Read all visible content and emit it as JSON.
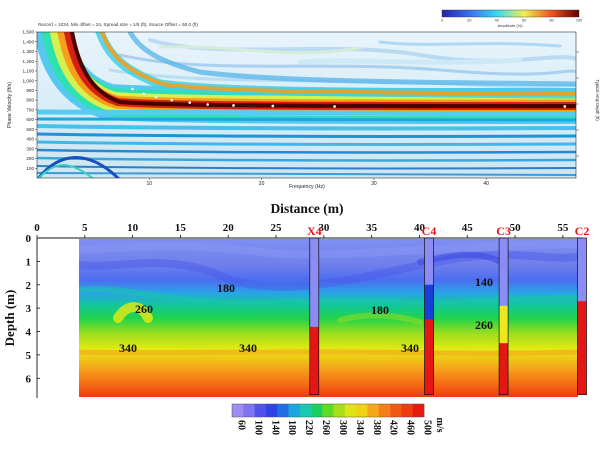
{
  "chart_data": [
    {
      "type": "heatmap",
      "header_text": "Record = 1034, Min offset = 24, Spread size = 1/5 (ft), Source Offset = 50.0 (ft)",
      "colorbar_title": "Amplitude (%)",
      "colorbar_ticks": [
        "0",
        "20",
        "40",
        "60",
        "80",
        "100"
      ],
      "xlabel": "Frequency (Hz)",
      "ylabel": "Phase Velocity (ft/s)",
      "right_label": "Typical Amp Depth (ft)",
      "xlim": [
        0,
        48
      ],
      "ylim": [
        0,
        1500
      ],
      "x_ticks": [
        "10",
        "20",
        "30",
        "40"
      ],
      "y_ticks": [
        "1,500",
        "1,400",
        "1,300",
        "1,200",
        "1,100",
        "1,000",
        "900",
        "800",
        "700",
        "600",
        "500",
        "400",
        "300",
        "200",
        "100"
      ],
      "dispersion_curve": {
        "x": [
          5.5,
          6.2,
          6.9,
          7.7,
          8.5,
          9.5,
          10.6,
          12.0,
          13.6,
          15.2,
          17.5,
          21.0,
          26.5,
          47.0
        ],
        "y": [
          1180,
          1110,
          1040,
          975,
          915,
          865,
          830,
          800,
          775,
          755,
          745,
          740,
          735,
          735
        ]
      }
    },
    {
      "type": "heatmap",
      "title": "Distance (m)",
      "ylabel": "Depth (m)",
      "xlim": [
        0,
        57
      ],
      "ylim": [
        6.8,
        0
      ],
      "x_ticks": [
        "0",
        "5",
        "10",
        "15",
        "20",
        "25",
        "30",
        "35",
        "40",
        "45",
        "50",
        "55"
      ],
      "y_ticks": [
        "0",
        "1",
        "2",
        "3",
        "4",
        "5",
        "6"
      ],
      "contour_labels": [
        "180",
        "260",
        "340",
        "340",
        "180",
        "340",
        "140",
        "260"
      ],
      "boreholes": [
        {
          "name": "X4",
          "x": 29,
          "bottom": 6.7,
          "intervals": [
            {
              "to": 3.8,
              "color": "#8c8cf5"
            },
            {
              "to": 6.7,
              "color": "#e51616"
            }
          ]
        },
        {
          "name": "C4",
          "x": 41,
          "bottom": 6.7,
          "intervals": [
            {
              "to": 2.0,
              "color": "#8c8cf5"
            },
            {
              "to": 3.5,
              "color": "#1a3fd6"
            },
            {
              "to": 6.7,
              "color": "#e51616"
            }
          ]
        },
        {
          "name": "C3",
          "x": 48.8,
          "bottom": 6.7,
          "intervals": [
            {
              "to": 2.9,
              "color": "#8c8cf5"
            },
            {
              "to": 4.5,
              "color": "#f0e61e"
            },
            {
              "to": 6.7,
              "color": "#e51616"
            }
          ]
        },
        {
          "name": "C2",
          "x": 57,
          "bottom": 6.7,
          "intervals": [
            {
              "to": 2.7,
              "color": "#8c8cf5"
            },
            {
              "to": 6.7,
              "color": "#e51616"
            }
          ]
        }
      ],
      "colorbar_ticks": [
        "60",
        "100",
        "140",
        "180",
        "220",
        "260",
        "300",
        "340",
        "380",
        "420",
        "460",
        "500"
      ],
      "colorbar_unit": "m/s"
    }
  ]
}
